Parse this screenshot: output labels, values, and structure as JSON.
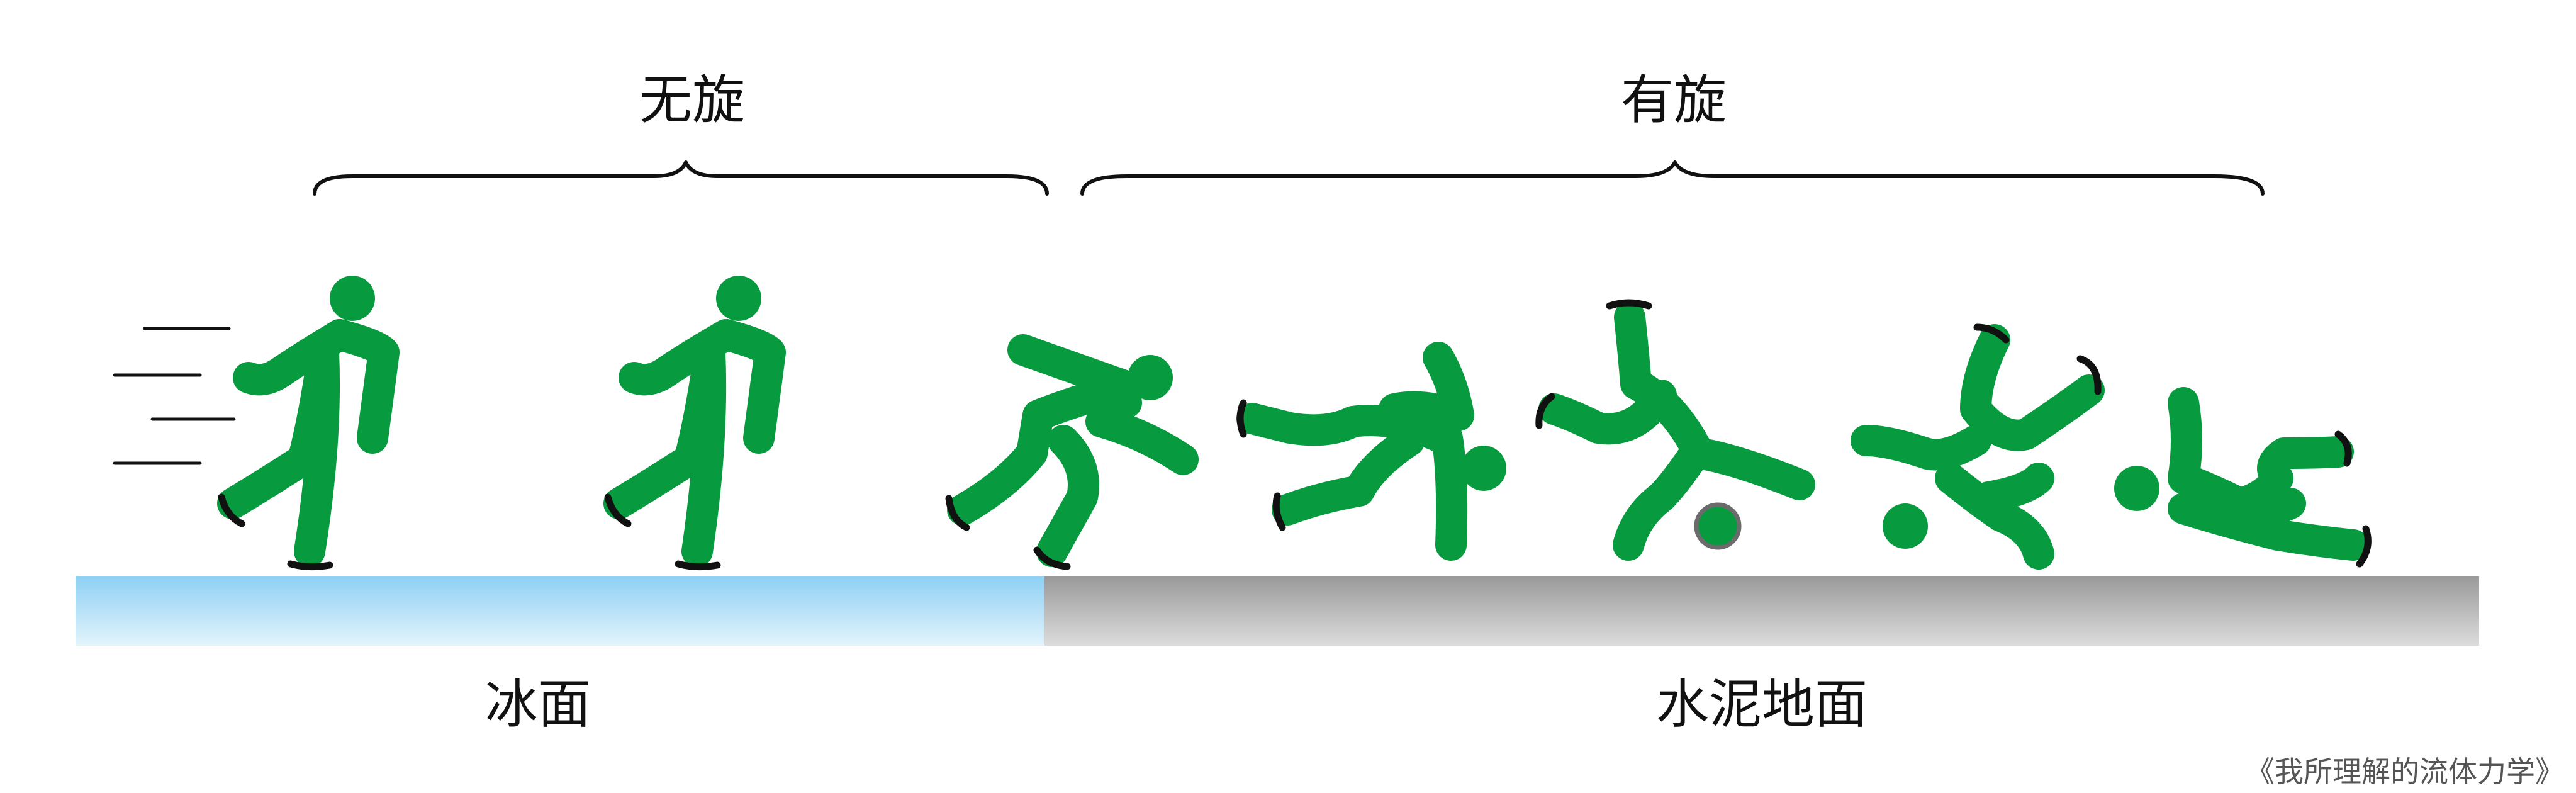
{
  "labels": {
    "no_spin": "无旋",
    "spin": "有旋",
    "ice_surface": "冰面",
    "concrete_ground": "水泥地面",
    "credit": "《我所理解的流体力学》"
  },
  "colors": {
    "figure_green": "#079a3e",
    "ice_top": "#8ed0f3",
    "ice_bottom": "#e3f4fc",
    "concrete_top": "#9a9a9a",
    "concrete_bottom": "#dcdcdc",
    "text": "#111111"
  }
}
